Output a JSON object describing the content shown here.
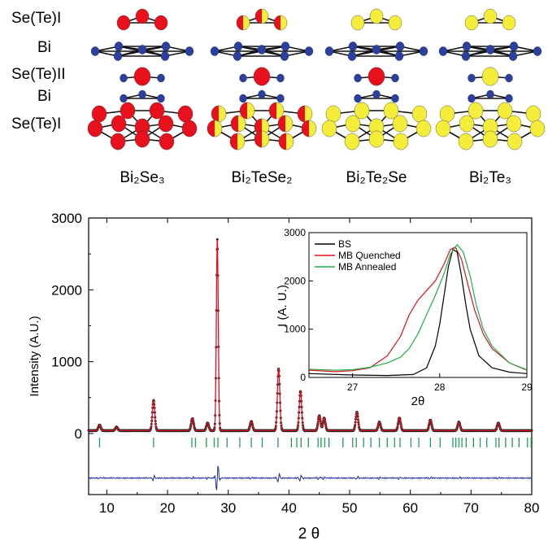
{
  "structure": {
    "layer_labels": [
      "Se(Te)I",
      "Bi",
      "Se(Te)II",
      "Bi",
      "Se(Te)I"
    ],
    "compounds": [
      {
        "name": "Bi₂Se₃",
        "top": "red",
        "mid": "red",
        "bot": "red"
      },
      {
        "name": "Bi₂TeSe₂",
        "top": "mixed",
        "mid": "red",
        "bot": "mixed"
      },
      {
        "name": "Bi₂Te₂Se",
        "top": "yellow",
        "mid": "red",
        "bot": "yellow"
      },
      {
        "name": "Bi₂Te₃",
        "top": "yellow",
        "mid": "yellow",
        "bot": "yellow"
      }
    ],
    "colors": {
      "se": "#e8101c",
      "te": "#f4ee3a",
      "bi": "#2a3fa0",
      "bond": "#111111"
    }
  },
  "chart_data": [
    {
      "type": "line",
      "title": "",
      "xlabel": "2 θ",
      "ylabel": "Intensity (A.U.)",
      "xlim": [
        7,
        80
      ],
      "ylim": [
        -850,
        3000
      ],
      "xticks": [
        10,
        20,
        30,
        40,
        50,
        60,
        70,
        80
      ],
      "yticks": [
        0,
        1000,
        2000,
        3000
      ],
      "baseline": 40,
      "peaks": [
        {
          "x": 8.8,
          "y": 120
        },
        {
          "x": 11.6,
          "y": 90
        },
        {
          "x": 17.7,
          "y": 460
        },
        {
          "x": 24.1,
          "y": 210
        },
        {
          "x": 26.6,
          "y": 150
        },
        {
          "x": 28.2,
          "y": 2700
        },
        {
          "x": 33.8,
          "y": 170
        },
        {
          "x": 38.3,
          "y": 900
        },
        {
          "x": 41.9,
          "y": 590
        },
        {
          "x": 45.0,
          "y": 250
        },
        {
          "x": 45.8,
          "y": 220
        },
        {
          "x": 51.2,
          "y": 300
        },
        {
          "x": 54.9,
          "y": 160
        },
        {
          "x": 58.2,
          "y": 220
        },
        {
          "x": 63.3,
          "y": 190
        },
        {
          "x": 68.0,
          "y": 160
        },
        {
          "x": 74.5,
          "y": 150
        }
      ],
      "bragg_ticks": [
        8.8,
        17.7,
        24.0,
        24.6,
        26.4,
        27.7,
        28.3,
        29.8,
        31.9,
        33.8,
        35.6,
        38.2,
        40.4,
        41.3,
        42.0,
        43.2,
        44.8,
        45.3,
        45.9,
        46.6,
        48.9,
        50.5,
        51.1,
        52.3,
        53.5,
        54.9,
        56.2,
        57.4,
        58.3,
        60.1,
        61.4,
        63.3,
        64.9,
        67.0,
        67.5,
        68.0,
        68.5,
        69.2,
        70.4,
        71.5,
        72.6,
        74.1,
        74.6,
        75.7,
        76.8,
        77.9,
        79.3,
        79.9
      ],
      "difference_offset": -620,
      "series": [
        {
          "name": "observed",
          "color": "#222222"
        },
        {
          "name": "calculated",
          "color": "#e0101c"
        },
        {
          "name": "difference",
          "color": "#1f2f9f"
        },
        {
          "name": "bragg",
          "color": "#1fa050"
        }
      ]
    },
    {
      "type": "line",
      "title": "",
      "xlabel": "2θ",
      "ylabel": "I (A. U.)",
      "xlim": [
        26.5,
        29
      ],
      "ylim": [
        0,
        3000
      ],
      "xticks": [
        27,
        28,
        29
      ],
      "yticks": [
        0,
        1000,
        2000,
        3000
      ],
      "legend_position": "top-left",
      "series": [
        {
          "name": "BS",
          "color": "#000000",
          "x": [
            26.5,
            27.0,
            27.4,
            27.7,
            27.85,
            27.95,
            28.0,
            28.05,
            28.1,
            28.15,
            28.2,
            28.25,
            28.3,
            28.35,
            28.45,
            28.6,
            28.8,
            29.0
          ],
          "y": [
            80,
            50,
            40,
            60,
            200,
            650,
            1100,
            1700,
            2300,
            2650,
            2600,
            2100,
            1500,
            1000,
            450,
            200,
            110,
            80
          ]
        },
        {
          "name": "MB Quenched",
          "color": "#e0101c",
          "x": [
            26.5,
            26.8,
            27.0,
            27.2,
            27.4,
            27.55,
            27.65,
            27.75,
            27.85,
            27.95,
            28.05,
            28.12,
            28.18,
            28.25,
            28.32,
            28.4,
            28.5,
            28.6,
            28.8,
            29.0
          ],
          "y": [
            150,
            120,
            140,
            200,
            450,
            850,
            1300,
            1600,
            1800,
            2000,
            2350,
            2650,
            2700,
            2450,
            1950,
            1400,
            900,
            600,
            300,
            150
          ]
        },
        {
          "name": "MB Annealed",
          "color": "#1fb04a",
          "x": [
            26.5,
            26.8,
            27.0,
            27.2,
            27.4,
            27.55,
            27.65,
            27.75,
            27.85,
            27.95,
            28.05,
            28.12,
            28.2,
            28.27,
            28.35,
            28.42,
            28.5,
            28.6,
            28.8,
            29.0
          ],
          "y": [
            170,
            150,
            160,
            210,
            300,
            420,
            600,
            900,
            1300,
            1700,
            2150,
            2550,
            2750,
            2600,
            2100,
            1500,
            1000,
            650,
            300,
            160
          ]
        }
      ]
    }
  ]
}
